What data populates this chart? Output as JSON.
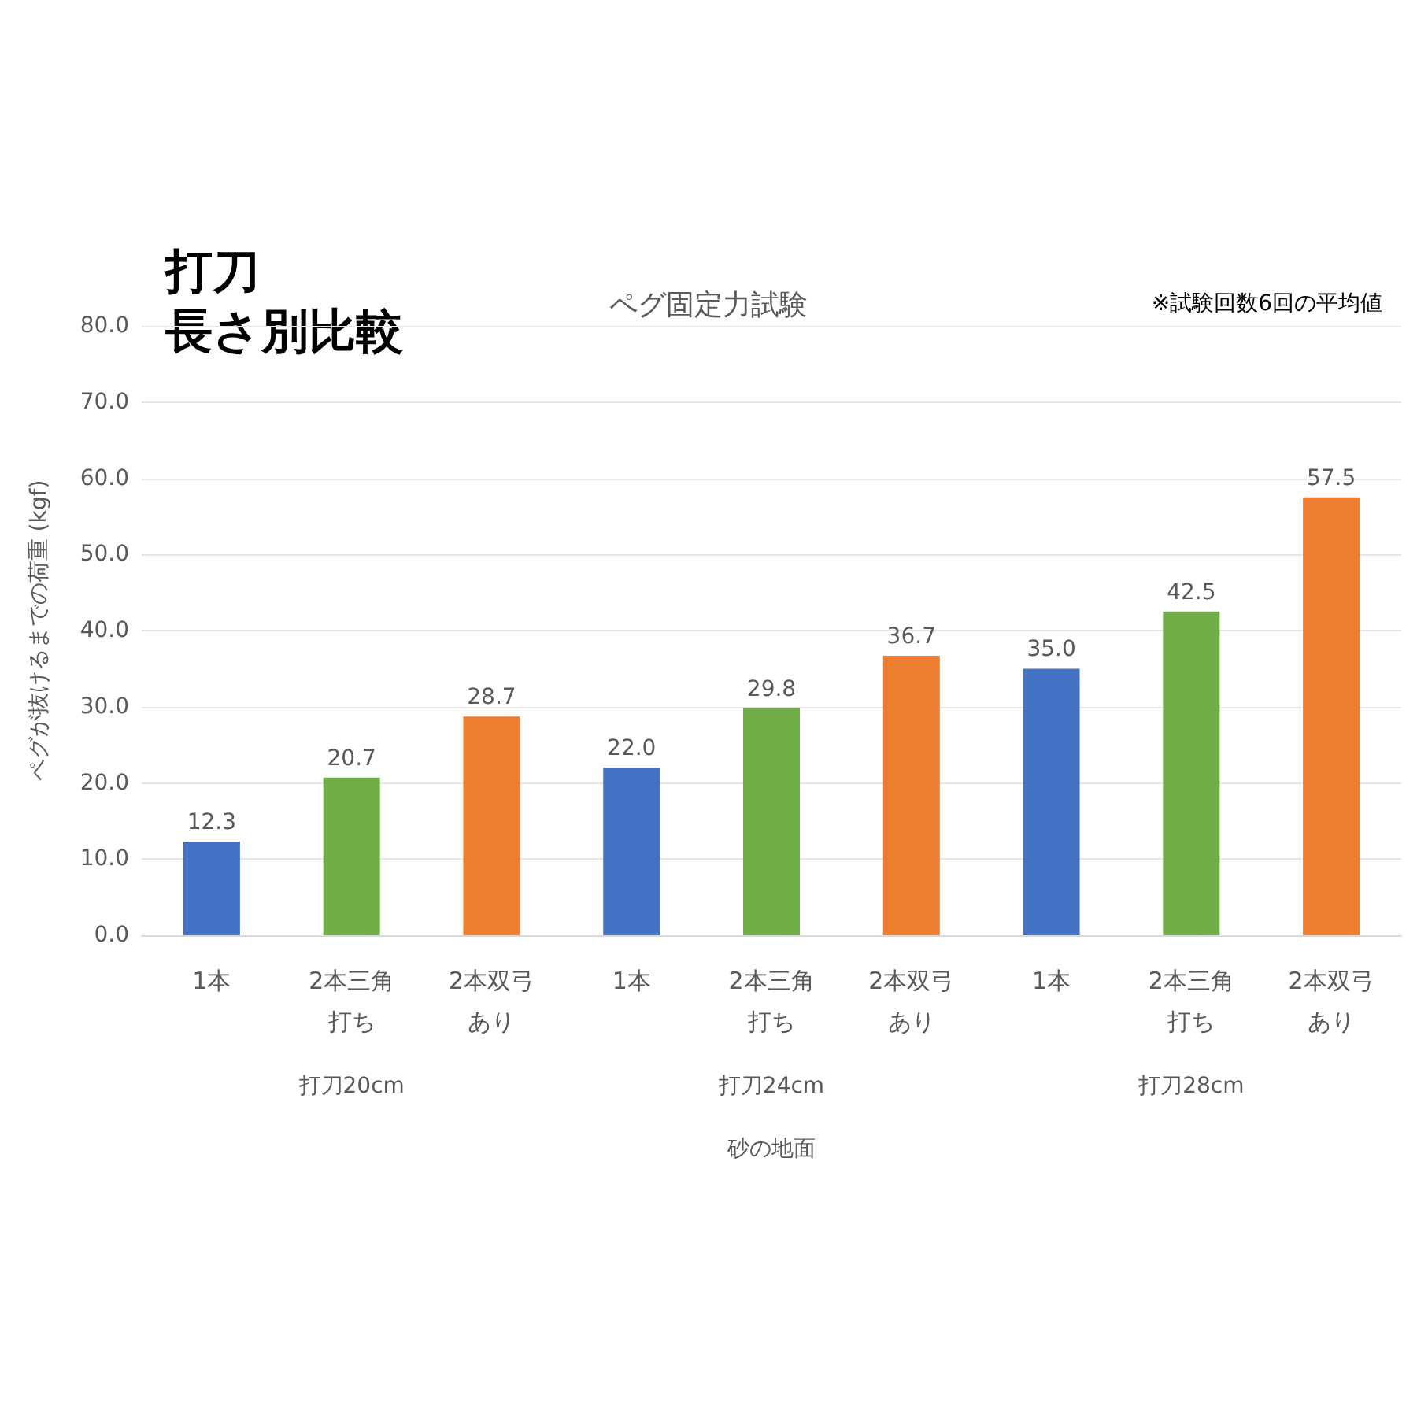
{
  "chart_data": {
    "type": "bar",
    "title": "ペグ固定力試験",
    "ylabel": "ペグが抜けるまでの荷重 (kgf)",
    "xlabel": "砂の地面",
    "annotations": [
      "※試験回数6回の平均値",
      "打刀",
      "長さ別比較",
      "打刀20cm",
      "打刀24cm",
      "打刀28cm"
    ],
    "categories": [
      "1本",
      "2本三角打ち",
      "2本双弓あり",
      "1本",
      "2本三角打ち",
      "2本双弓あり",
      "1本",
      "2本三角打ち",
      "2本双弓あり"
    ],
    "values": [
      12.3,
      20.7,
      28.7,
      22.0,
      29.8,
      36.7,
      35.0,
      42.5,
      57.5
    ],
    "value_labels": [
      "12.3",
      "20.7",
      "28.7",
      "22.0",
      "29.8",
      "36.7",
      "35.0",
      "42.5",
      "57.5"
    ],
    "colors": [
      "#4472c4",
      "#70ad47",
      "#ed7d31",
      "#4472c4",
      "#70ad47",
      "#ed7d31",
      "#4472c4",
      "#70ad47",
      "#ed7d31"
    ],
    "ylim": [
      0,
      80
    ],
    "yticks": [
      {
        "value": 0,
        "label": "0.0"
      },
      {
        "value": 10,
        "label": "10.0"
      },
      {
        "value": 20,
        "label": "20.0"
      },
      {
        "value": 30,
        "label": "30.0"
      },
      {
        "value": 40,
        "label": "40.0"
      },
      {
        "value": 50,
        "label": "50.0"
      },
      {
        "value": 60,
        "label": "60.0"
      },
      {
        "value": 70,
        "label": "70.0"
      },
      {
        "value": 80,
        "label": "80.0"
      }
    ],
    "grid": "y"
  }
}
